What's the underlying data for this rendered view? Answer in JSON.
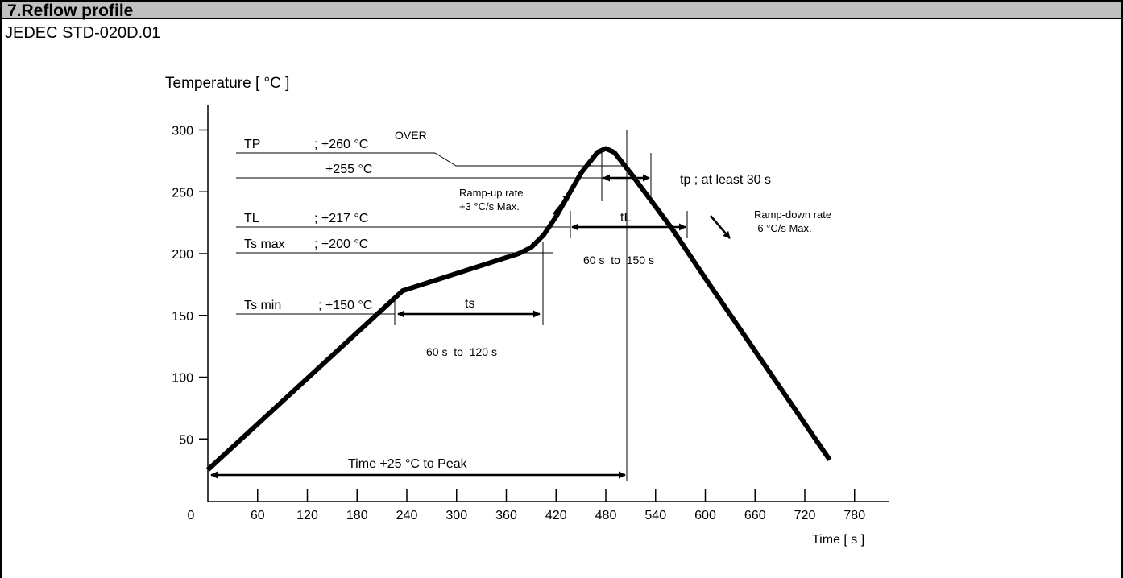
{
  "header": {
    "title": "7.Reflow profile"
  },
  "subtitle": "JEDEC STD-020D.01",
  "chart_data": {
    "type": "line",
    "ylabel": "Temperature [ °C ]",
    "xlabel": "Time [ s ]",
    "xlim": [
      0,
      780
    ],
    "ylim": [
      0,
      300
    ],
    "x_ticks": [
      "0",
      "60",
      "120",
      "180",
      "240",
      "300",
      "360",
      "420",
      "480",
      "540",
      "600",
      "660",
      "720",
      "780"
    ],
    "y_ticks": [
      "50",
      "100",
      "150",
      "200",
      "250",
      "300"
    ],
    "series": [
      {
        "x": [
          0,
          235,
          375,
          390,
          405,
          420,
          450,
          470,
          480,
          490,
          510,
          560,
          600,
          750
        ],
        "y": [
          25,
          170,
          200,
          205,
          215,
          230,
          265,
          282,
          285,
          282,
          265,
          220,
          180,
          33
        ]
      }
    ],
    "annotations": {
      "tp_label": "TP",
      "tp_value": "; +260 °C",
      "over": "OVER",
      "t255": "+255 °C",
      "tl_label": "TL",
      "tl_value": "; +217 °C",
      "tsmax_label": "Ts max",
      "tsmax_value": "; +200 °C",
      "tsmin_label": "Ts min",
      "tsmin_value": "; +150 °C",
      "ts": "ts",
      "ts_range": "60 s  to  120 s",
      "tL": "tL",
      "tL_range": "60 s  to  150 s",
      "tp_note": "tp ; at least 30 s",
      "ramp_up_1": "Ramp-up rate",
      "ramp_up_2": "+3 °C/s Max.",
      "ramp_down_1": "Ramp-down rate",
      "ramp_down_2": "-6 °C/s Max.",
      "time_to_peak": "Time +25 °C to Peak"
    }
  }
}
